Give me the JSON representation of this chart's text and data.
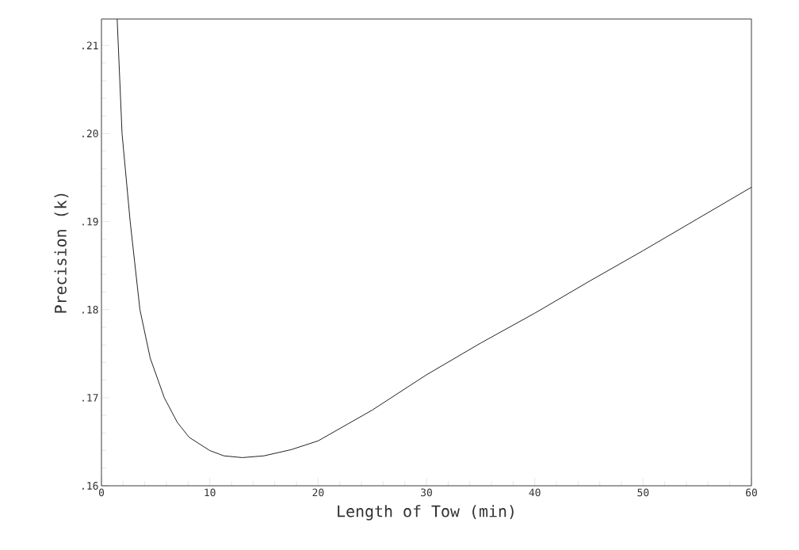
{
  "chart_data": {
    "type": "line",
    "xlabel": "Length of Tow (min)",
    "ylabel": "Precision (k)",
    "x": [
      1.45,
      1.9,
      2.65,
      3.55,
      4.5,
      5.8,
      7,
      8.1,
      10,
      11.3,
      13,
      15,
      17.5,
      20,
      25,
      30,
      35,
      40,
      45,
      50,
      55,
      60
    ],
    "series": [
      {
        "color": "#222222",
        "values": [
          0.213,
          0.2,
          0.19,
          0.18,
          0.1745,
          0.17,
          0.1672,
          0.1655,
          0.164,
          0.1634,
          0.1632,
          0.1634,
          0.1641,
          0.1651,
          0.1686,
          0.1726,
          0.1762,
          0.1796,
          0.1832,
          0.1867,
          0.1903,
          0.1939
        ]
      }
    ],
    "xlim": [
      0,
      60
    ],
    "ylim": [
      0.16,
      0.213
    ],
    "xticks": [
      0,
      10,
      20,
      30,
      40,
      50,
      60
    ],
    "yticks": [
      {
        "value": 0.16,
        "label": ".16"
      },
      {
        "value": 0.17,
        "label": ".17"
      },
      {
        "value": 0.18,
        "label": ".18"
      },
      {
        "value": 0.19,
        "label": ".19"
      },
      {
        "value": 0.2,
        "label": ".20"
      },
      {
        "value": 0.21,
        "label": ".21"
      }
    ],
    "grid": false,
    "marker": "none",
    "line_style": "solid"
  }
}
